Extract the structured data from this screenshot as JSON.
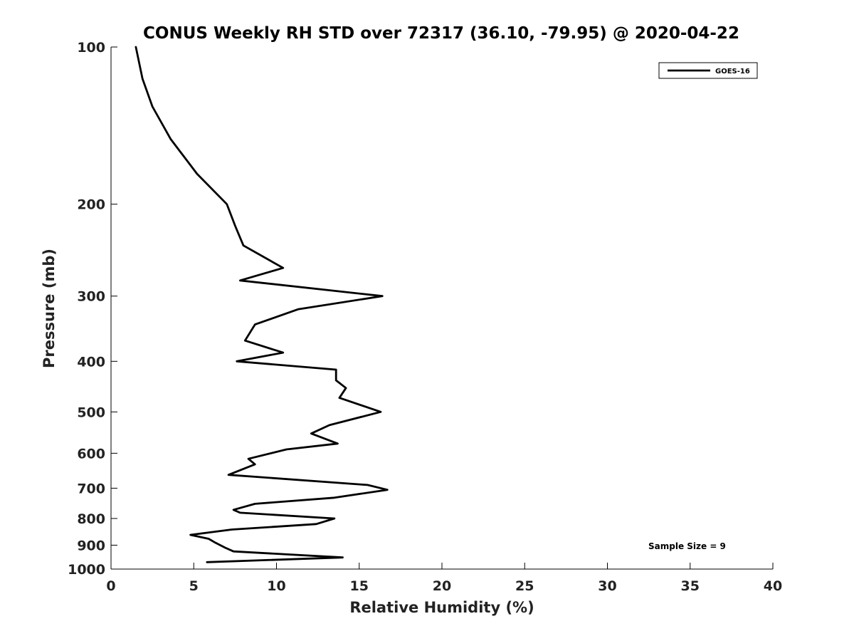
{
  "chart_data": {
    "type": "line",
    "title": "CONUS Weekly RH STD over 72317 (36.10, -79.95) @ 2020-04-22",
    "xlabel": "Relative Humidity (%)",
    "ylabel": "Pressure (mb)",
    "xlim": [
      0,
      40
    ],
    "ylim": [
      100,
      1000
    ],
    "yscale": "log",
    "y_reversed": true,
    "grid": false,
    "xticks": [
      0,
      5,
      10,
      15,
      20,
      25,
      30,
      35,
      40
    ],
    "yticks": [
      100,
      200,
      300,
      400,
      500,
      600,
      700,
      800,
      900,
      1000
    ],
    "legend": {
      "position": "top-right",
      "entries": [
        "GOES-16"
      ]
    },
    "annotation": "Sample Size = 9",
    "series": [
      {
        "name": "GOES-16",
        "color": "#000000",
        "x": [
          1.5,
          1.9,
          2.5,
          3.6,
          5.2,
          7.0,
          7.5,
          8.0,
          10.4,
          7.8,
          16.4,
          11.3,
          8.7,
          8.1,
          10.4,
          7.6,
          13.6,
          13.6,
          14.2,
          13.8,
          16.3,
          13.2,
          12.1,
          13.7,
          10.6,
          8.3,
          8.7,
          7.1,
          15.5,
          16.7,
          13.5,
          8.7,
          7.4,
          7.8,
          13.5,
          12.4,
          7.3,
          4.8,
          5.9,
          6.3,
          6.9,
          7.4,
          14.0,
          5.8
        ],
        "y": [
          100,
          115,
          130,
          150,
          175,
          200,
          220,
          240,
          265,
          280,
          300,
          318,
          340,
          365,
          385,
          400,
          415,
          435,
          450,
          470,
          500,
          530,
          550,
          575,
          590,
          615,
          630,
          660,
          690,
          705,
          730,
          750,
          770,
          780,
          800,
          820,
          840,
          860,
          875,
          890,
          910,
          925,
          950,
          970
        ]
      }
    ]
  }
}
